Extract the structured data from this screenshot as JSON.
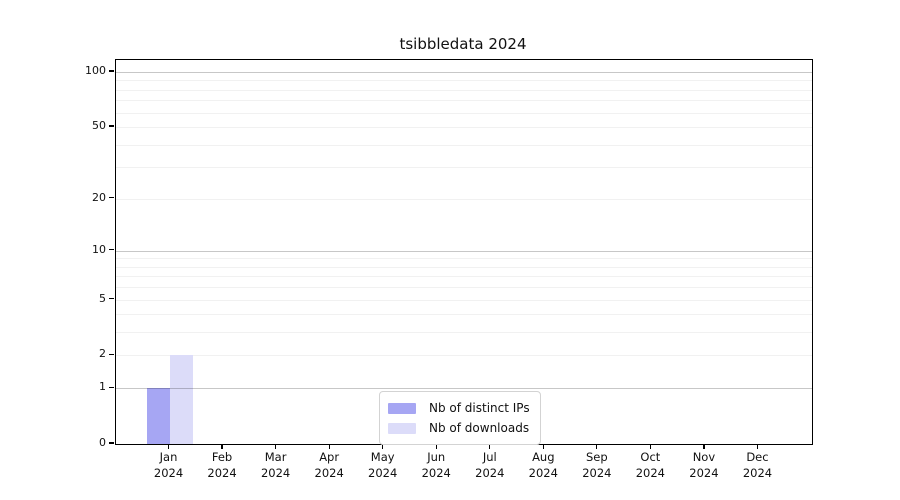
{
  "figure": {
    "title": "tsibbledata 2024"
  },
  "chart_data": {
    "type": "bar",
    "title": "tsibbledata 2024",
    "categories": [
      "Jan 2024",
      "Feb 2024",
      "Mar 2024",
      "Apr 2024",
      "May 2024",
      "Jun 2024",
      "Jul 2024",
      "Aug 2024",
      "Sep 2024",
      "Oct 2024",
      "Nov 2024",
      "Dec 2024"
    ],
    "series": [
      {
        "name": "Nb of distinct IPs",
        "color": "#a6a6f3",
        "values": [
          1,
          0,
          0,
          0,
          0,
          0,
          0,
          0,
          0,
          0,
          0,
          0
        ]
      },
      {
        "name": "Nb of downloads",
        "color": "#dcdcf9",
        "values": [
          2,
          0,
          0,
          0,
          0,
          0,
          0,
          0,
          0,
          0,
          0,
          0
        ]
      }
    ],
    "yscale": "log1p",
    "ylim": [
      0,
      116
    ],
    "y_tick_values": [
      0,
      1,
      2,
      5,
      10,
      20,
      50,
      100
    ],
    "grid_major_values": [
      1,
      10,
      100
    ],
    "grid_minor_values": [
      2,
      3,
      4,
      5,
      6,
      7,
      8,
      9,
      20,
      30,
      40,
      50,
      60,
      70,
      80,
      90
    ],
    "grid": true,
    "legend_position": "bottom-center",
    "colors": {
      "axis": "#000000",
      "grid_major": "rgba(0,0,0,0.22)",
      "grid_minor": "rgba(0,0,0,0.055)"
    }
  }
}
